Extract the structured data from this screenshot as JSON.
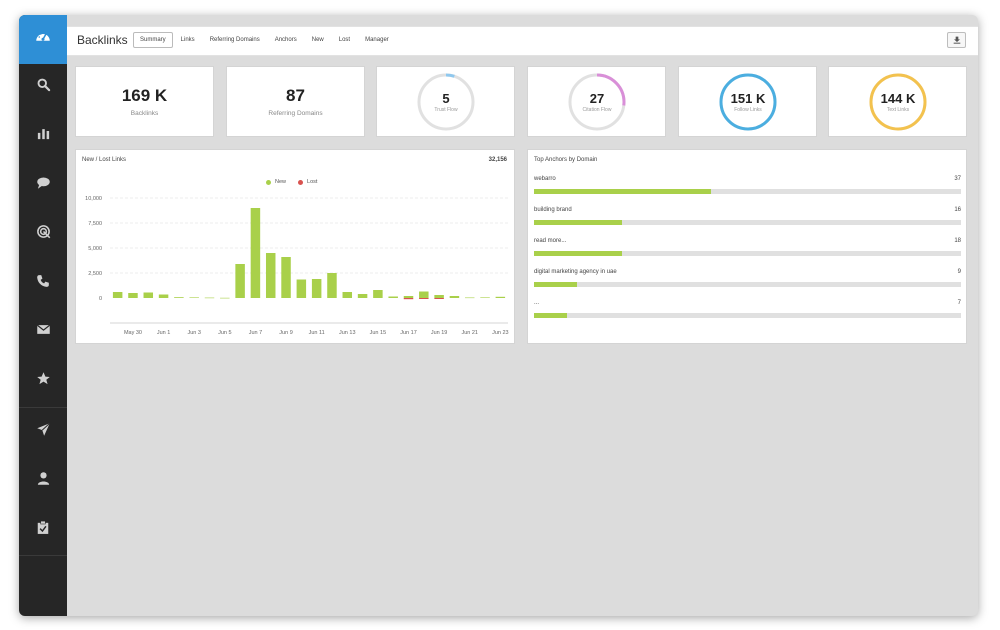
{
  "sidebar": {
    "items": [
      {
        "name": "search",
        "icon": "search-icon"
      },
      {
        "name": "reports",
        "icon": "bar-chart-icon"
      },
      {
        "name": "comments",
        "icon": "chat-bubble-icon"
      },
      {
        "name": "target",
        "icon": "target-icon"
      },
      {
        "name": "phone",
        "icon": "phone-icon"
      },
      {
        "name": "mail",
        "icon": "mail-icon"
      },
      {
        "name": "favorites",
        "icon": "star-icon"
      },
      {
        "name": "send",
        "icon": "paper-plane-icon"
      },
      {
        "name": "user",
        "icon": "user-icon"
      },
      {
        "name": "tasks",
        "icon": "clipboard-icon"
      }
    ]
  },
  "header": {
    "title": "Backlinks",
    "tabs": [
      {
        "label": "Summary",
        "active": true
      },
      {
        "label": "Links",
        "active": false
      },
      {
        "label": "Referring Domains",
        "active": false
      },
      {
        "label": "Anchors",
        "active": false
      },
      {
        "label": "New",
        "active": false
      },
      {
        "label": "Lost",
        "active": false
      },
      {
        "label": "Manager",
        "active": false
      }
    ]
  },
  "stats": [
    {
      "value": "169 K",
      "label": "Backlinks"
    },
    {
      "value": "87",
      "label": "Referring Domains"
    }
  ],
  "rings": [
    {
      "value": "5",
      "label": "Trust Flow",
      "fraction": 0.05,
      "color": "#8fc8ee"
    },
    {
      "value": "27",
      "label": "Citation Flow",
      "fraction": 0.27,
      "color": "#d98fd8"
    },
    {
      "value": "151 K",
      "label": "Follow Links",
      "fraction": 1.0,
      "color": "#4baee0"
    },
    {
      "value": "144 K",
      "label": "Text Links",
      "fraction": 1.0,
      "color": "#f3c24e"
    }
  ],
  "links_panel": {
    "title": "New / Lost Links",
    "total": "32,156"
  },
  "chart_data": {
    "type": "bar",
    "title": "New / Lost Links",
    "x_tick_labels": [
      "May 30",
      "Jun 1",
      "Jun 3",
      "Jun 5",
      "Jun 7",
      "Jun 9",
      "Jun 11",
      "Jun 13",
      "Jun 15",
      "Jun 17",
      "Jun 19",
      "Jun 21",
      "Jun 23"
    ],
    "y_tick_labels": [
      "10,000",
      "7,500",
      "5,000",
      "2,500",
      "0"
    ],
    "ylim": [
      0,
      10000
    ],
    "series": [
      {
        "name": "New",
        "color": "#a9d04a",
        "values": [
          600,
          500,
          550,
          350,
          80,
          60,
          40,
          20,
          3400,
          9000,
          4500,
          4100,
          1850,
          1900,
          2500,
          600,
          400,
          800,
          150,
          200,
          650,
          300,
          200,
          50,
          60,
          120
        ]
      },
      {
        "name": "Lost",
        "color": "#d9534f",
        "values": [
          0,
          0,
          0,
          0,
          0,
          0,
          0,
          0,
          0,
          0,
          0,
          0,
          0,
          0,
          0,
          0,
          0,
          0,
          0,
          120,
          60,
          80,
          0,
          0,
          0,
          0
        ]
      }
    ],
    "grid": true,
    "legend": "top-center"
  },
  "anchors_panel": {
    "title": "Top Anchors by Domain",
    "items": [
      {
        "label": "webarro",
        "count": "37",
        "fraction": 0.415
      },
      {
        "label": "building brand",
        "count": "16",
        "fraction": 0.205
      },
      {
        "label": "read more...",
        "count": "18",
        "fraction": 0.205
      },
      {
        "label": "digital marketing agency in uae",
        "count": "9",
        "fraction": 0.1
      },
      {
        "label": "...",
        "count": "7",
        "fraction": 0.078
      }
    ],
    "bar_color": "#a9d04a"
  }
}
